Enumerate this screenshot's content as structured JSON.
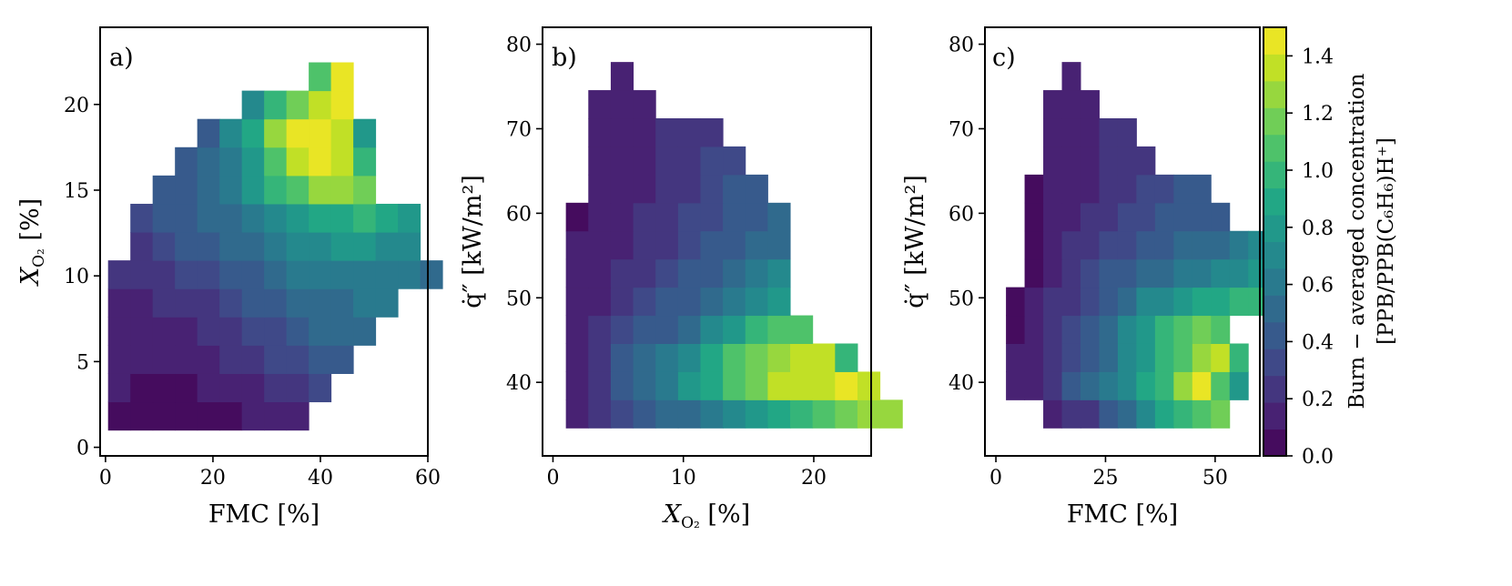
{
  "chart_data": [
    {
      "type": "heatmap",
      "panel_label": "a)",
      "xlabel": "FMC [%]",
      "ylabel": "X_O2 [%]",
      "xlim": [
        -1,
        60
      ],
      "ylim": [
        -0.5,
        24.5
      ],
      "xticks": [
        0,
        20,
        40,
        60
      ],
      "yticks": [
        0,
        5,
        10,
        15,
        20
      ],
      "cell_w": 4.15,
      "cell_h": 1.65,
      "rows": [
        {
          "y": 1.83,
          "x0": 2.55,
          "values": [
            0.08,
            0.05,
            0.03,
            0.02,
            0.03,
            0.06,
            0.1,
            0.13,
            0.15
          ]
        },
        {
          "y": 3.48,
          "x0": 2.55,
          "values": [
            0.12,
            0.09,
            0.07,
            0.08,
            0.1,
            0.14,
            0.18,
            0.23,
            0.27,
            0.31
          ]
        },
        {
          "y": 5.13,
          "x0": 2.55,
          "values": [
            0.12,
            0.12,
            0.12,
            0.14,
            0.18,
            0.21,
            0.26,
            0.32,
            0.37,
            0.42,
            0.45
          ]
        },
        {
          "y": 6.78,
          "x0": 2.55,
          "values": [
            0.15,
            0.14,
            0.15,
            0.18,
            0.22,
            0.26,
            0.31,
            0.37,
            0.43,
            0.48,
            0.52,
            0.55
          ]
        },
        {
          "y": 8.43,
          "x0": 2.55,
          "values": [
            0.18,
            0.18,
            0.2,
            0.24,
            0.28,
            0.33,
            0.38,
            0.44,
            0.5,
            0.54,
            0.56,
            0.58,
            0.58
          ]
        },
        {
          "y": 10.08,
          "x0": 2.55,
          "values": [
            0.22,
            0.23,
            0.26,
            0.3,
            0.35,
            0.4,
            0.46,
            0.52,
            0.57,
            0.61,
            0.63,
            0.62,
            0.6,
            0.58,
            0.56
          ]
        },
        {
          "y": 11.73,
          "x0": 6.7,
          "values": [
            0.28,
            0.33,
            0.38,
            0.43,
            0.49,
            0.55,
            0.61,
            0.67,
            0.72,
            0.76,
            0.78,
            0.74,
            0.7
          ]
        },
        {
          "y": 13.38,
          "x0": 6.7,
          "values": [
            0.32,
            0.38,
            0.43,
            0.49,
            0.56,
            0.63,
            0.71,
            0.8,
            0.88,
            0.93,
            0.96,
            0.9,
            0.82
          ]
        },
        {
          "y": 15.03,
          "x0": 10.85,
          "values": [
            0.38,
            0.46,
            0.54,
            0.64,
            0.78,
            0.96,
            1.08,
            1.22,
            1.25,
            1.14
          ]
        },
        {
          "y": 16.68,
          "x0": 15.0,
          "values": [
            0.4,
            0.5,
            0.62,
            0.82,
            1.12,
            1.38,
            1.48,
            1.36,
            1.02
          ]
        },
        {
          "y": 18.33,
          "x0": 19.15,
          "values": [
            0.46,
            0.68,
            0.9,
            1.3,
            1.5,
            1.48,
            1.4,
            0.84
          ]
        },
        {
          "y": 19.98,
          "x0": 27.45,
          "values": [
            0.7,
            1.0,
            1.18,
            1.38,
            1.46
          ]
        },
        {
          "y": 21.63,
          "x0": 39.9,
          "values": [
            1.1,
            1.42
          ]
        }
      ]
    },
    {
      "type": "heatmap",
      "panel_label": "b)",
      "xlabel": "X_O2 [%]",
      "ylabel": "q̇″ [kW/m²]",
      "xlim": [
        -0.8,
        24.4
      ],
      "ylim": [
        31.3,
        82.0
      ],
      "xticks": [
        0,
        10,
        20
      ],
      "yticks": [
        40,
        50,
        60,
        70,
        80
      ],
      "cell_w": 1.72,
      "cell_h": 3.33,
      "rows": [
        {
          "y": 36.27,
          "x0": 1.85,
          "values": [
            0.15,
            0.24,
            0.34,
            0.4,
            0.48,
            0.54,
            0.6,
            0.68,
            0.8,
            0.92,
            1.0,
            1.08,
            1.2,
            1.3,
            1.28
          ]
        },
        {
          "y": 39.6,
          "x0": 1.85,
          "values": [
            0.13,
            0.24,
            0.46,
            0.54,
            0.62,
            0.76,
            0.9,
            1.1,
            1.2,
            1.36,
            1.4,
            1.4,
            1.44,
            1.36
          ]
        },
        {
          "y": 42.93,
          "x0": 1.85,
          "values": [
            0.12,
            0.24,
            0.44,
            0.52,
            0.6,
            0.7,
            0.88,
            1.12,
            1.18,
            1.28,
            1.4,
            1.38,
            0.94
          ]
        },
        {
          "y": 46.26,
          "x0": 1.85,
          "values": [
            0.12,
            0.2,
            0.3,
            0.38,
            0.46,
            0.56,
            0.68,
            0.84,
            1.0,
            1.06,
            1.12
          ]
        },
        {
          "y": 49.59,
          "x0": 1.85,
          "values": [
            0.12,
            0.17,
            0.23,
            0.3,
            0.38,
            0.46,
            0.54,
            0.62,
            0.72,
            0.84
          ]
        },
        {
          "y": 52.92,
          "x0": 1.85,
          "values": [
            0.1,
            0.16,
            0.21,
            0.26,
            0.32,
            0.38,
            0.44,
            0.52,
            0.6,
            0.72
          ]
        },
        {
          "y": 56.25,
          "x0": 1.85,
          "values": [
            0.1,
            0.14,
            0.18,
            0.22,
            0.28,
            0.33,
            0.38,
            0.44,
            0.5,
            0.56
          ]
        },
        {
          "y": 59.58,
          "x0": 1.85,
          "values": [
            0.08,
            0.12,
            0.15,
            0.2,
            0.24,
            0.29,
            0.34,
            0.4,
            0.46,
            0.52
          ]
        },
        {
          "y": 62.91,
          "x0": 3.57,
          "values": [
            0.1,
            0.13,
            0.17,
            0.22,
            0.27,
            0.32,
            0.38,
            0.45
          ]
        },
        {
          "y": 66.24,
          "x0": 3.57,
          "values": [
            0.1,
            0.13,
            0.16,
            0.2,
            0.24,
            0.3,
            0.36
          ]
        },
        {
          "y": 69.57,
          "x0": 3.57,
          "values": [
            0.1,
            0.12,
            0.15,
            0.19,
            0.23,
            0.27
          ]
        },
        {
          "y": 72.9,
          "x0": 3.57,
          "values": [
            0.1,
            0.12,
            0.14
          ]
        },
        {
          "y": 76.23,
          "x0": 5.29,
          "values": [
            0.12
          ]
        }
      ]
    },
    {
      "type": "heatmap",
      "panel_label": "c)",
      "xlabel": "FMC [%]",
      "ylabel": "q̇″ [kW/m²]",
      "xlim": [
        -2.5,
        60.2
      ],
      "ylim": [
        31.3,
        82.0
      ],
      "xticks": [
        0,
        25,
        50
      ],
      "yticks": [
        40,
        50,
        60,
        70,
        80
      ],
      "cell_w": 4.25,
      "cell_h": 3.33,
      "rows": [
        {
          "y": 36.27,
          "x0": 12.92,
          "values": [
            0.12,
            0.2,
            0.28,
            0.44,
            0.56,
            0.74,
            0.88,
            1.02,
            1.08,
            1.14
          ]
        },
        {
          "y": 39.6,
          "x0": 4.42,
          "values": [
            0.12,
            0.16,
            0.28,
            0.38,
            0.5,
            0.62,
            0.72,
            0.86,
            1.02,
            1.22,
            1.5,
            1.1,
            0.8
          ]
        },
        {
          "y": 42.93,
          "x0": 4.42,
          "values": [
            0.12,
            0.18,
            0.26,
            0.34,
            0.46,
            0.56,
            0.68,
            0.82,
            0.96,
            1.1,
            1.3,
            1.4,
            1.02
          ]
        },
        {
          "y": 46.26,
          "x0": 4.42,
          "values": [
            0.08,
            0.14,
            0.22,
            0.3,
            0.4,
            0.54,
            0.68,
            0.84,
            0.98,
            1.1,
            1.14,
            1.04
          ]
        },
        {
          "y": 49.59,
          "x0": 4.42,
          "values": [
            0.06,
            0.1,
            0.2,
            0.26,
            0.34,
            0.44,
            0.54,
            0.66,
            0.74,
            0.84,
            0.9,
            0.92,
            0.94,
            0.96
          ]
        },
        {
          "y": 52.92,
          "x0": 8.67,
          "values": [
            0.08,
            0.16,
            0.22,
            0.3,
            0.38,
            0.44,
            0.5,
            0.54,
            0.58,
            0.62,
            0.66,
            0.72,
            0.8
          ]
        },
        {
          "y": 56.25,
          "x0": 8.67,
          "values": [
            0.08,
            0.14,
            0.2,
            0.26,
            0.3,
            0.35,
            0.4,
            0.44,
            0.48,
            0.52,
            0.56,
            0.6,
            0.66
          ]
        },
        {
          "y": 59.58,
          "x0": 8.67,
          "values": [
            0.08,
            0.12,
            0.17,
            0.22,
            0.26,
            0.3,
            0.34,
            0.38,
            0.42,
            0.44,
            0.46
          ]
        },
        {
          "y": 62.91,
          "x0": 8.67,
          "values": [
            0.06,
            0.1,
            0.14,
            0.18,
            0.22,
            0.26,
            0.3,
            0.34,
            0.38,
            0.42
          ]
        },
        {
          "y": 66.24,
          "x0": 12.92,
          "values": [
            0.1,
            0.14,
            0.18,
            0.22,
            0.24,
            0.28
          ]
        },
        {
          "y": 69.57,
          "x0": 12.92,
          "values": [
            0.1,
            0.14,
            0.18,
            0.22,
            0.24
          ]
        },
        {
          "y": 72.9,
          "x0": 12.92,
          "values": [
            0.12,
            0.14,
            0.16
          ]
        },
        {
          "y": 76.23,
          "x0": 17.17,
          "values": [
            0.14
          ]
        }
      ]
    }
  ],
  "colorbar": {
    "label_line1": "Burn − averaged concentration",
    "label_line2": "[PPB/PPB(C₆H₆)H⁺]",
    "vmin": 0.0,
    "vmax": 1.5,
    "levels": 16,
    "ticks": [
      0.0,
      0.2,
      0.4,
      0.6,
      0.8,
      1.0,
      1.2,
      1.4
    ],
    "colormap": "viridis"
  }
}
